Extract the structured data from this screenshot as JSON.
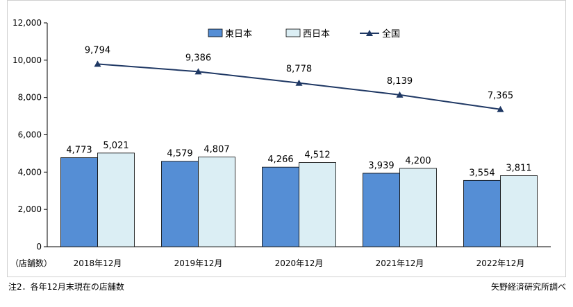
{
  "chart_data": {
    "type": "bar",
    "categories": [
      "2018年12月",
      "2019年12月",
      "2020年12月",
      "2021年12月",
      "2022年12月"
    ],
    "series": [
      {
        "name": "東日本",
        "kind": "bar",
        "color": "#558ed5",
        "values": [
          4773,
          4579,
          4266,
          3939,
          3554
        ],
        "labels": [
          "4,773",
          "4,579",
          "4,266",
          "3,939",
          "3,554"
        ]
      },
      {
        "name": "西日本",
        "kind": "bar",
        "color": "#dbeef4",
        "values": [
          5021,
          4807,
          4512,
          4200,
          3811
        ],
        "labels": [
          "5,021",
          "4,807",
          "4,512",
          "4,200",
          "3,811"
        ]
      },
      {
        "name": "全国",
        "kind": "line",
        "color": "#1f3864",
        "values": [
          9794,
          9386,
          8778,
          8139,
          7365
        ],
        "labels": [
          "9,794",
          "9,386",
          "8,778",
          "8,139",
          "7,365"
        ]
      }
    ],
    "ylim": [
      0,
      12000
    ],
    "yticks": [
      0,
      2000,
      4000,
      6000,
      8000,
      10000,
      12000
    ],
    "ytick_labels": [
      "0",
      "2,000",
      "4,000",
      "6,000",
      "8,000",
      "10,000",
      "12,000"
    ],
    "ylabel": "（店舗数）",
    "legend": "top-center"
  },
  "footnote": "注2．各年12月末現在の店舗数",
  "source": "矢野経済研究所調べ"
}
